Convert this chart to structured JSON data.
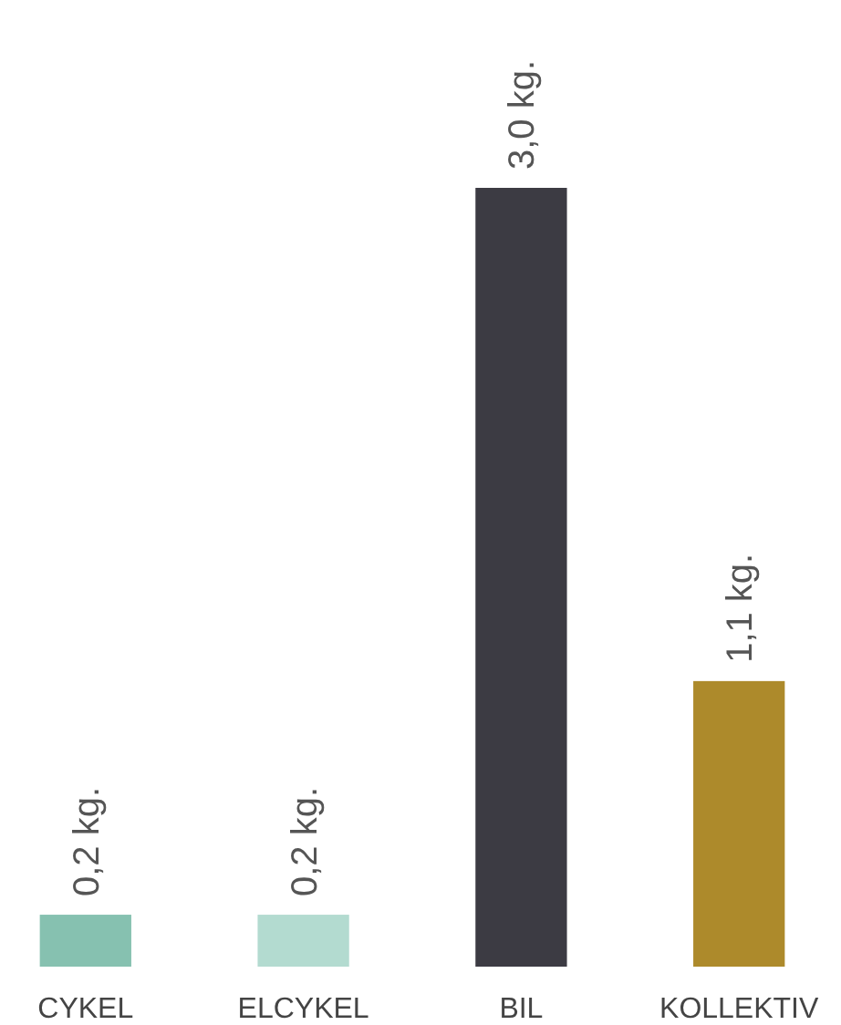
{
  "chart_data": {
    "type": "bar",
    "categories": [
      "CYKEL",
      "ELCYKEL",
      "BIL",
      "KOLLEKTIV"
    ],
    "values": [
      0.2,
      0.2,
      3.0,
      1.1
    ],
    "colors": [
      "#86c1b0",
      "#b3dbd0",
      "#3c3b43",
      "#ad8a2b"
    ],
    "value_labels": [
      "0,2 kg.",
      "0,2 kg.",
      "3,0 kg.",
      "1,1 kg."
    ]
  }
}
